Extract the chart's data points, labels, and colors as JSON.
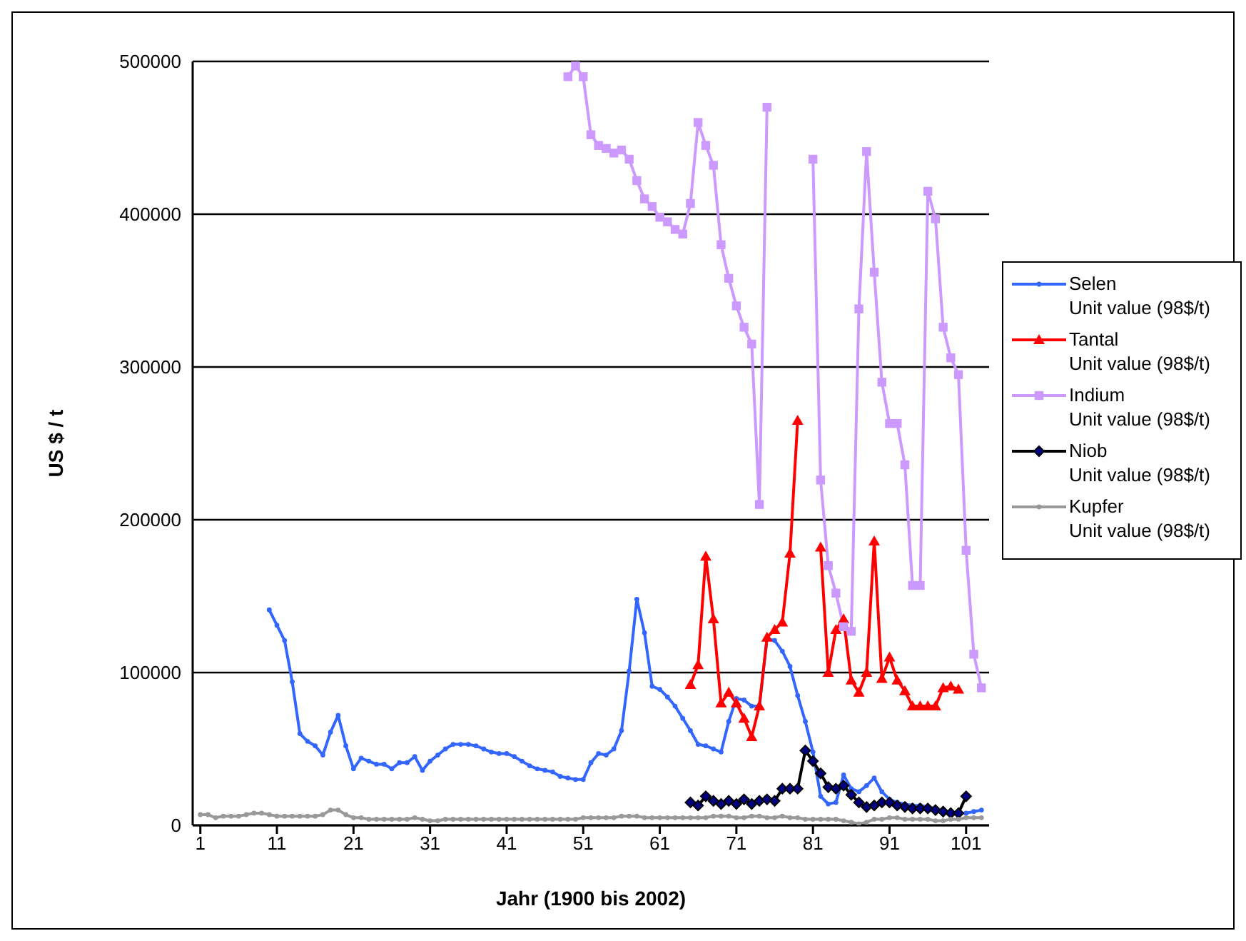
{
  "chart_data": {
    "type": "line",
    "xlabel": "Jahr (1900 bis 2002)",
    "ylabel": "US $ / t",
    "x": [
      1,
      2,
      3,
      4,
      5,
      6,
      7,
      8,
      9,
      10,
      11,
      12,
      13,
      14,
      15,
      16,
      17,
      18,
      19,
      20,
      21,
      22,
      23,
      24,
      25,
      26,
      27,
      28,
      29,
      30,
      31,
      32,
      33,
      34,
      35,
      36,
      37,
      38,
      39,
      40,
      41,
      42,
      43,
      44,
      45,
      46,
      47,
      48,
      49,
      50,
      51,
      52,
      53,
      54,
      55,
      56,
      57,
      58,
      59,
      60,
      61,
      62,
      63,
      64,
      65,
      66,
      67,
      68,
      69,
      70,
      71,
      72,
      73,
      74,
      75,
      76,
      77,
      78,
      79,
      80,
      81,
      82,
      83,
      84,
      85,
      86,
      87,
      88,
      89,
      90,
      91,
      92,
      93,
      94,
      95,
      96,
      97,
      98,
      99,
      100,
      101,
      102,
      103
    ],
    "xlim": [
      0,
      104
    ],
    "xticks": [
      1,
      11,
      21,
      31,
      41,
      51,
      61,
      71,
      81,
      91,
      101
    ],
    "ylim": [
      0,
      500000
    ],
    "yticks": [
      0,
      100000,
      200000,
      300000,
      400000,
      500000
    ],
    "grid": "y",
    "legend": "right",
    "series": [
      {
        "name": "Selen Unit value (98$/t)",
        "color": "#3366ff",
        "marker": "circle",
        "values": [
          null,
          null,
          null,
          null,
          null,
          null,
          null,
          null,
          null,
          141000,
          131000,
          121000,
          94000,
          60000,
          55000,
          52000,
          46000,
          61000,
          72000,
          52000,
          37000,
          44000,
          42000,
          40000,
          40000,
          37000,
          41000,
          41000,
          45000,
          36000,
          42000,
          46000,
          50000,
          53000,
          53000,
          53000,
          52000,
          50000,
          48000,
          47000,
          47000,
          45000,
          42000,
          39000,
          37000,
          36000,
          35000,
          32000,
          31000,
          30000,
          30000,
          41000,
          47000,
          46000,
          50000,
          62000,
          101000,
          148000,
          126000,
          91000,
          89000,
          84000,
          78000,
          70000,
          62000,
          53000,
          52000,
          50000,
          48000,
          68000,
          83000,
          82000,
          78000,
          78000,
          122000,
          121000,
          114000,
          104000,
          85000,
          68000,
          48000,
          19000,
          14000,
          15000,
          33000,
          24000,
          22000,
          26000,
          31000,
          22000,
          17000,
          15000,
          14000,
          13000,
          13000,
          12000,
          11000,
          9000,
          8000,
          8000,
          8000,
          9000,
          10000
        ]
      },
      {
        "name": "Tantal Unit value (98$/t)",
        "color": "#ff0000",
        "marker": "triangle",
        "values": [
          null,
          null,
          null,
          null,
          null,
          null,
          null,
          null,
          null,
          null,
          null,
          null,
          null,
          null,
          null,
          null,
          null,
          null,
          null,
          null,
          null,
          null,
          null,
          null,
          null,
          null,
          null,
          null,
          null,
          null,
          null,
          null,
          null,
          null,
          null,
          null,
          null,
          null,
          null,
          null,
          null,
          null,
          null,
          null,
          null,
          null,
          null,
          null,
          null,
          null,
          null,
          null,
          null,
          null,
          null,
          null,
          null,
          null,
          null,
          null,
          null,
          null,
          null,
          null,
          92000,
          105000,
          176000,
          135000,
          80000,
          87000,
          80000,
          70000,
          58000,
          78000,
          123000,
          128000,
          133000,
          178000,
          265000,
          null,
          null,
          182000,
          100000,
          128000,
          135000,
          95000,
          87000,
          100000,
          186000,
          96000,
          110000,
          95000,
          88000,
          78000,
          78000,
          78000,
          78000,
          90000,
          91000,
          89000,
          null,
          null,
          null
        ]
      },
      {
        "name": "Indium Unit value (98$/t)",
        "color": "#cc99ff",
        "marker": "square",
        "values": [
          null,
          null,
          null,
          null,
          null,
          null,
          null,
          null,
          null,
          null,
          null,
          null,
          null,
          null,
          null,
          null,
          null,
          null,
          null,
          null,
          null,
          null,
          null,
          null,
          null,
          null,
          null,
          null,
          null,
          null,
          null,
          null,
          null,
          null,
          null,
          null,
          null,
          null,
          null,
          null,
          null,
          null,
          null,
          null,
          null,
          null,
          null,
          null,
          490000,
          497000,
          490000,
          452000,
          445000,
          443000,
          440000,
          442000,
          436000,
          422000,
          410000,
          405000,
          398000,
          395000,
          390000,
          387000,
          407000,
          460000,
          445000,
          432000,
          380000,
          358000,
          340000,
          326000,
          315000,
          210000,
          470000,
          null,
          null,
          null,
          null,
          null,
          436000,
          226000,
          170000,
          152000,
          130000,
          127000,
          338000,
          441000,
          362000,
          290000,
          263000,
          263000,
          236000,
          157000,
          157000,
          415000,
          397000,
          326000,
          306000,
          295000,
          180000,
          112000,
          90000
        ]
      },
      {
        "name": "Niob Unit value (98$/t)",
        "color": "#000000",
        "marker": "diamond",
        "values": [
          null,
          null,
          null,
          null,
          null,
          null,
          null,
          null,
          null,
          null,
          null,
          null,
          null,
          null,
          null,
          null,
          null,
          null,
          null,
          null,
          null,
          null,
          null,
          null,
          null,
          null,
          null,
          null,
          null,
          null,
          null,
          null,
          null,
          null,
          null,
          null,
          null,
          null,
          null,
          null,
          null,
          null,
          null,
          null,
          null,
          null,
          null,
          null,
          null,
          null,
          null,
          null,
          null,
          null,
          null,
          null,
          null,
          null,
          null,
          null,
          null,
          null,
          null,
          null,
          15000,
          13000,
          19000,
          16000,
          14000,
          16000,
          14000,
          17000,
          14000,
          16000,
          17000,
          16000,
          24000,
          24000,
          24000,
          49000,
          42000,
          34000,
          25000,
          24000,
          26000,
          20000,
          15000,
          12000,
          13000,
          15000,
          15000,
          13000,
          12000,
          11000,
          11000,
          11000,
          10000,
          9000,
          8000,
          8000,
          19000,
          null,
          null
        ]
      },
      {
        "name": "Kupfer Unit value (98$/t)",
        "color": "#999999",
        "marker": "circle",
        "values": [
          7000,
          7000,
          5000,
          6000,
          6000,
          6000,
          7000,
          8000,
          8000,
          7000,
          6000,
          6000,
          6000,
          6000,
          6000,
          6000,
          7000,
          10000,
          10000,
          7000,
          5000,
          5000,
          4000,
          4000,
          4000,
          4000,
          4000,
          4000,
          5000,
          4000,
          3000,
          3000,
          4000,
          4000,
          4000,
          4000,
          4000,
          4000,
          4000,
          4000,
          4000,
          4000,
          4000,
          4000,
          4000,
          4000,
          4000,
          4000,
          4000,
          4000,
          5000,
          5000,
          5000,
          5000,
          5000,
          6000,
          6000,
          6000,
          5000,
          5000,
          5000,
          5000,
          5000,
          5000,
          5000,
          5000,
          5000,
          6000,
          6000,
          6000,
          5000,
          5000,
          6000,
          6000,
          5000,
          5000,
          6000,
          5000,
          5000,
          4000,
          4000,
          4000,
          4000,
          4000,
          3000,
          2000,
          1000,
          2000,
          4000,
          4000,
          5000,
          5000,
          4000,
          4000,
          4000,
          4000,
          3000,
          3000,
          4000,
          4000,
          5000,
          5000,
          5000
        ]
      }
    ]
  }
}
